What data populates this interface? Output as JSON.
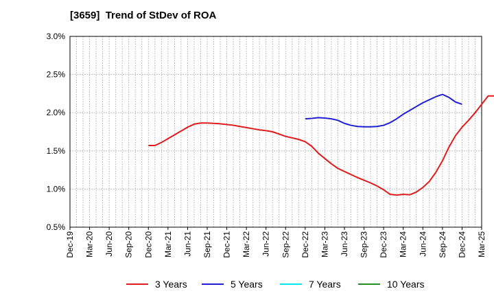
{
  "chart_data": {
    "type": "line",
    "title": "[3659]  Trend of StDev of ROA",
    "xlabel": "",
    "ylabel": "",
    "x_ticks": [
      "Dec-19",
      "Mar-20",
      "Jun-20",
      "Sep-20",
      "Dec-20",
      "Mar-21",
      "Jun-21",
      "Sep-21",
      "Dec-21",
      "Mar-22",
      "Jun-22",
      "Sep-22",
      "Dec-22",
      "Mar-23",
      "Jun-23",
      "Sep-23",
      "Dec-23",
      "Mar-24",
      "Jun-24",
      "Sep-24",
      "Dec-24",
      "Mar-25"
    ],
    "y_ticks": [
      "0.5%",
      "1.0%",
      "1.5%",
      "2.0%",
      "2.5%",
      "3.0%"
    ],
    "ylim": [
      0.5,
      3.0
    ],
    "grid": true,
    "legend_position": "bottom",
    "series": [
      {
        "name": "3 Years",
        "color": "#e31a1c",
        "start_index": 12,
        "values": [
          1.57,
          1.57,
          1.61,
          1.66,
          1.71,
          1.76,
          1.81,
          1.85,
          1.865,
          1.865,
          1.86,
          1.855,
          1.845,
          1.835,
          1.82,
          1.805,
          1.79,
          1.775,
          1.765,
          1.75,
          1.72,
          1.69,
          1.67,
          1.65,
          1.62,
          1.56,
          1.47,
          1.4,
          1.33,
          1.27,
          1.23,
          1.19,
          1.15,
          1.115,
          1.08,
          1.04,
          0.99,
          0.93,
          0.92,
          0.93,
          0.925,
          0.96,
          1.02,
          1.1,
          1.22,
          1.37,
          1.55,
          1.7,
          1.81,
          1.9,
          2.0,
          2.11,
          2.22,
          2.22,
          2.21,
          2.26
        ]
      },
      {
        "name": "5 Years",
        "color": "#1f1fd6",
        "start_index": 36,
        "values": [
          1.92,
          1.925,
          1.935,
          1.93,
          1.92,
          1.9,
          1.86,
          1.835,
          1.82,
          1.815,
          1.815,
          1.82,
          1.835,
          1.87,
          1.92,
          1.98,
          2.03,
          2.08,
          2.13,
          2.17,
          2.21,
          2.24,
          2.2,
          2.14,
          2.11
        ]
      },
      {
        "name": "7 Years",
        "color": "#00e5ee",
        "start_index": 0,
        "values": []
      },
      {
        "name": "10 Years",
        "color": "#228b22",
        "start_index": 0,
        "values": []
      }
    ]
  }
}
